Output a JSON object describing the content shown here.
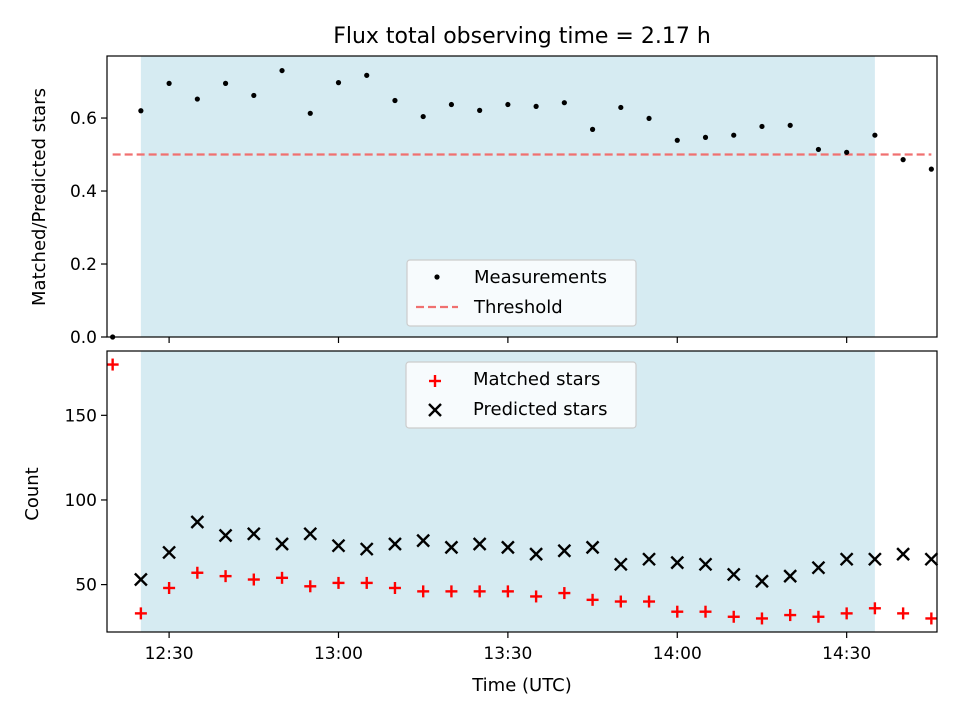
{
  "title": "Flux total observing time = 2.17 h",
  "colors": {
    "band": "#add8e6",
    "measurement": "#000000",
    "threshold": "#f07070",
    "matched": "#ff0000",
    "predicted": "#000000"
  },
  "chart_data": [
    {
      "type": "scatter",
      "title": "Flux total observing time = 2.17 h",
      "ylabel": "Matched/Predicted stars",
      "xlabel": "",
      "xlim": [
        "12:19",
        "14:46"
      ],
      "ylim": [
        0,
        0.77
      ],
      "yticks": [
        "0.0",
        "0.2",
        "0.4",
        "0.6"
      ],
      "ytick_values": [
        0,
        0.2,
        0.4,
        0.6
      ],
      "xticks": [
        "12:30",
        "13:00",
        "13:30",
        "14:00",
        "14:30"
      ],
      "shaded_interval": [
        "12:25",
        "14:35"
      ],
      "legend": {
        "position": "lower center",
        "entries": [
          "Measurements",
          "Threshold"
        ]
      },
      "series": [
        {
          "name": "Measurements",
          "marker": "dot",
          "x": [
            "12:20",
            "12:25",
            "12:30",
            "12:35",
            "12:40",
            "12:45",
            "12:50",
            "12:55",
            "13:00",
            "13:05",
            "13:10",
            "13:15",
            "13:20",
            "13:25",
            "13:30",
            "13:35",
            "13:40",
            "13:45",
            "13:50",
            "13:55",
            "14:00",
            "14:05",
            "14:10",
            "14:15",
            "14:20",
            "14:25",
            "14:30",
            "14:35",
            "14:40",
            "14:45"
          ],
          "y": [
            0.0,
            0.62,
            0.695,
            0.652,
            0.695,
            0.662,
            0.73,
            0.613,
            0.697,
            0.717,
            0.648,
            0.604,
            0.637,
            0.621,
            0.637,
            0.632,
            0.642,
            0.569,
            0.629,
            0.599,
            0.539,
            0.547,
            0.553,
            0.577,
            0.58,
            0.514,
            0.506,
            0.553,
            0.486,
            0.46
          ]
        },
        {
          "name": "Threshold",
          "style": "dashed line",
          "x": [
            "12:20",
            "14:45"
          ],
          "y": [
            0.5,
            0.5
          ]
        }
      ]
    },
    {
      "type": "scatter",
      "ylabel": "Count",
      "xlabel": "Time (UTC)",
      "xlim": [
        "12:19",
        "14:46"
      ],
      "ylim": [
        22,
        188
      ],
      "yticks": [
        "50",
        "100",
        "150"
      ],
      "ytick_values": [
        50,
        100,
        150
      ],
      "xticks": [
        "12:30",
        "13:00",
        "13:30",
        "14:00",
        "14:30"
      ],
      "shaded_interval": [
        "12:25",
        "14:35"
      ],
      "legend": {
        "position": "upper center",
        "entries": [
          "Matched stars",
          "Predicted stars"
        ]
      },
      "series": [
        {
          "name": "Matched stars",
          "marker": "+",
          "x": [
            "12:20",
            "12:25",
            "12:30",
            "12:35",
            "12:40",
            "12:45",
            "12:50",
            "12:55",
            "13:00",
            "13:05",
            "13:10",
            "13:15",
            "13:20",
            "13:25",
            "13:30",
            "13:35",
            "13:40",
            "13:45",
            "13:50",
            "13:55",
            "14:00",
            "14:05",
            "14:10",
            "14:15",
            "14:20",
            "14:25",
            "14:30",
            "14:35",
            "14:40",
            "14:45"
          ],
          "y": [
            180,
            33,
            48,
            57,
            55,
            53,
            54,
            49,
            51,
            51,
            48,
            46,
            46,
            46,
            46,
            43,
            45,
            41,
            40,
            40,
            34,
            34,
            31,
            30,
            32,
            31,
            33,
            36,
            33,
            30
          ]
        },
        {
          "name": "Predicted stars",
          "marker": "x",
          "x": [
            "12:25",
            "12:30",
            "12:35",
            "12:40",
            "12:45",
            "12:50",
            "12:55",
            "13:00",
            "13:05",
            "13:10",
            "13:15",
            "13:20",
            "13:25",
            "13:30",
            "13:35",
            "13:40",
            "13:45",
            "13:50",
            "13:55",
            "14:00",
            "14:05",
            "14:10",
            "14:15",
            "14:20",
            "14:25",
            "14:30",
            "14:35",
            "14:40",
            "14:45"
          ],
          "y": [
            53,
            69,
            87,
            79,
            80,
            74,
            80,
            73,
            71,
            74,
            76,
            72,
            74,
            72,
            68,
            70,
            72,
            62,
            65,
            63,
            62,
            56,
            52,
            55,
            60,
            65,
            65,
            68,
            65
          ]
        }
      ]
    }
  ]
}
